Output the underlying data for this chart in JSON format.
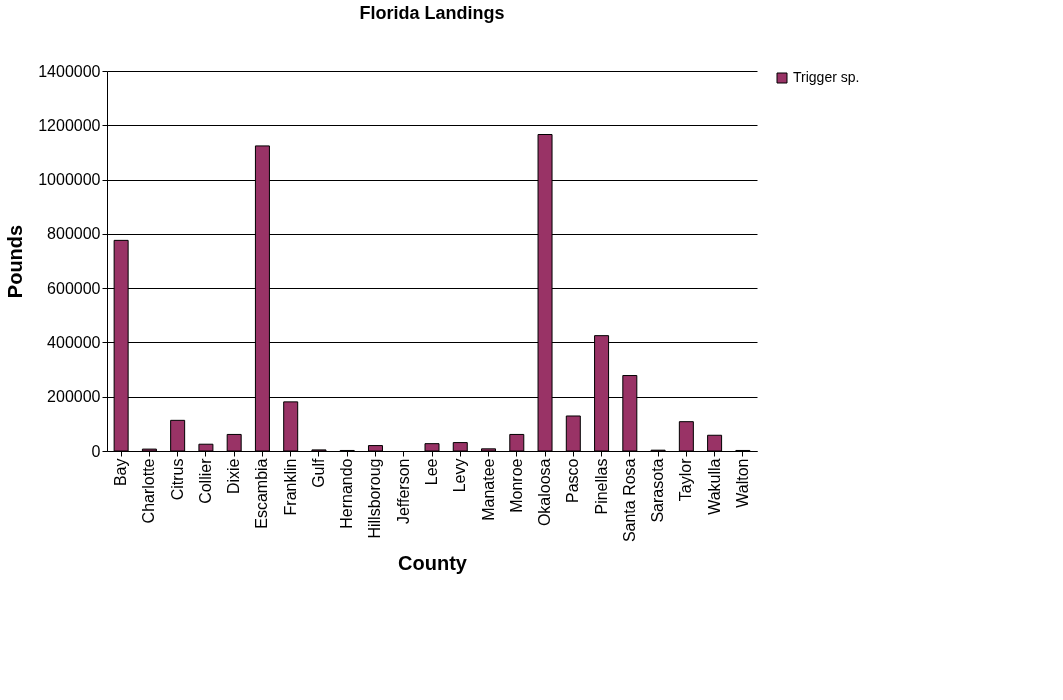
{
  "chart_data": {
    "type": "bar",
    "title": "Florida Landings",
    "xlabel": "County",
    "ylabel": "Pounds",
    "categories": [
      "Bay",
      "Charlotte",
      "Citrus",
      "Collier",
      "Dixie",
      "Escambia",
      "Franklin",
      "Gulf",
      "Hernando",
      "Hillsboroug",
      "Jefferson",
      "Lee",
      "Levy",
      "Manatee",
      "Monroe",
      "Okaloosa",
      "Pasco",
      "Pinellas",
      "Santa Rosa",
      "Sarasota",
      "Taylor",
      "Wakulla",
      "Walton"
    ],
    "series": [
      {
        "name": "Trigger sp.",
        "color": "#993366",
        "values": [
          776000,
          7000,
          113000,
          25000,
          61000,
          1124000,
          181000,
          4000,
          2000,
          20000,
          null,
          27000,
          31000,
          8000,
          61000,
          1166000,
          129000,
          425000,
          278000,
          3000,
          108000,
          58000,
          2000
        ]
      }
    ],
    "ylim": [
      0,
      1400000
    ],
    "yticks": [
      0,
      200000,
      400000,
      600000,
      800000,
      1000000,
      1200000,
      1400000
    ],
    "grid": "y",
    "legend": "right"
  }
}
